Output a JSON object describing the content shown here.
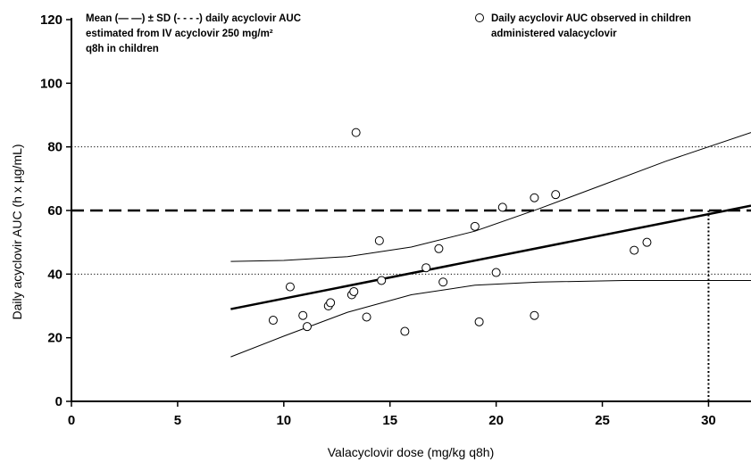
{
  "chart_data": {
    "type": "scatter",
    "xlabel": "Valacyclovir dose (mg/kg q8h)",
    "ylabel": "Daily acyclovir AUC (h x µg/mL)",
    "xlim": [
      0,
      32
    ],
    "ylim": [
      0,
      120
    ],
    "x_ticks": [
      0,
      5,
      10,
      15,
      20,
      25,
      30
    ],
    "y_ticks": [
      0,
      20,
      40,
      60,
      80,
      100,
      120
    ],
    "grid": false,
    "annotations": {
      "left_line1": "Mean (— —) ± SD (- - - -) daily acyclovir AUC",
      "left_line2": "estimated from IV acyclovir 250 mg/m²",
      "left_line3": "q8h in children",
      "right_line1": "Daily acyclovir AUC observed in children",
      "right_line2": "administered valacyclovir"
    },
    "reference_lines": {
      "mean_auc": 60,
      "sd_lower": 40,
      "sd_upper": 80,
      "dose_marker_x": 30
    },
    "series": [
      {
        "marker": "open-circle",
        "points": [
          [
            9.5,
            25.5
          ],
          [
            10.3,
            36
          ],
          [
            10.9,
            27
          ],
          [
            11.1,
            23.5
          ],
          [
            12.1,
            30
          ],
          [
            12.2,
            31
          ],
          [
            13.2,
            33.5
          ],
          [
            13.3,
            34.5
          ],
          [
            13.4,
            84.5
          ],
          [
            13.9,
            26.5
          ],
          [
            14.5,
            50.5
          ],
          [
            14.6,
            38
          ],
          [
            15.7,
            22
          ],
          [
            16.7,
            42
          ],
          [
            17.3,
            48
          ],
          [
            17.5,
            37.5
          ],
          [
            19.0,
            55
          ],
          [
            19.2,
            25
          ],
          [
            20.0,
            40.5
          ],
          [
            20.3,
            61
          ],
          [
            21.8,
            64
          ],
          [
            21.8,
            27
          ],
          [
            22.8,
            65
          ],
          [
            26.5,
            47.5
          ],
          [
            27.1,
            50
          ]
        ]
      }
    ],
    "regression_line": [
      [
        7.5,
        29
      ],
      [
        32,
        61.5
      ]
    ],
    "ci_upper": [
      [
        7.5,
        44
      ],
      [
        10,
        44.3
      ],
      [
        13,
        45.5
      ],
      [
        16,
        48.5
      ],
      [
        19,
        53.5
      ],
      [
        22,
        60.5
      ],
      [
        25,
        68
      ],
      [
        28,
        75.5
      ],
      [
        32,
        84.5
      ]
    ],
    "ci_lower": [
      [
        7.5,
        14
      ],
      [
        10,
        20.5
      ],
      [
        13,
        28
      ],
      [
        16,
        33.5
      ],
      [
        19,
        36.5
      ],
      [
        22,
        37.5
      ],
      [
        26,
        38
      ],
      [
        32,
        38
      ]
    ]
  }
}
